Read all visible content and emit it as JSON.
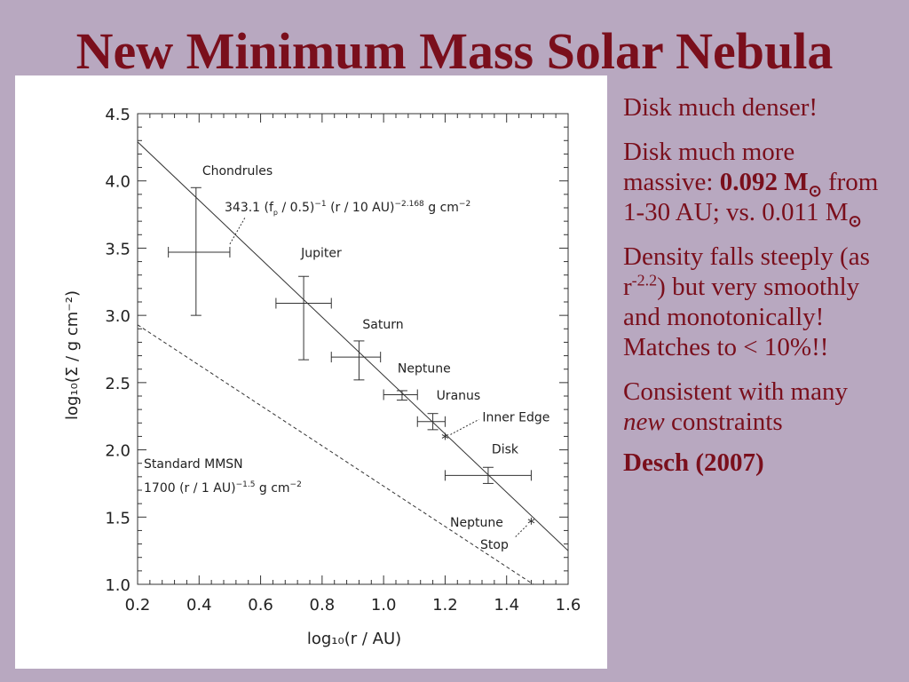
{
  "slide": {
    "title": "New Minimum Mass Solar Nebula",
    "bullets": {
      "p1": "Disk much denser!",
      "p2_a": "Disk much more massive: ",
      "p2_mass": "0.092 M",
      "p2_b": " from 1-30 AU; vs. 0.011 M",
      "p3_a": "Density falls steeply (as r",
      "p3_exp": "-2.2",
      "p3_b": ") but very smoothly and monotonically! Matches to < 10%!!",
      "p4_a": "Consistent with many ",
      "p4_em": "new",
      "p4_b": " constraints",
      "cite": "Desch (2007)"
    },
    "sun_symbol": "⊙"
  },
  "chart_data": {
    "type": "scatter",
    "xlabel": "log₁₀(r / AU)",
    "ylabel": "log₁₀(Σ / g cm⁻²)",
    "xlim": [
      0.2,
      1.6
    ],
    "ylim": [
      1.0,
      4.5
    ],
    "xticks": [
      0.2,
      0.4,
      0.6,
      0.8,
      1.0,
      1.2,
      1.4,
      1.6
    ],
    "xtick_labels": [
      "0.2",
      "0.4",
      "0.6",
      "0.8",
      "1.0",
      "1.2",
      "1.4",
      "1.6"
    ],
    "yticks": [
      1.0,
      1.5,
      2.0,
      2.5,
      3.0,
      3.5,
      4.0,
      4.5
    ],
    "ytick_labels": [
      "1.0",
      "1.5",
      "2.0",
      "2.5",
      "3.0",
      "3.5",
      "4.0",
      "4.5"
    ],
    "grid": false,
    "points": [
      {
        "label": "Chondrules",
        "x": 0.39,
        "y": 3.47,
        "xlow": 0.3,
        "xhigh": 0.5,
        "ylow": 3.0,
        "yhigh": 3.95
      },
      {
        "label": "Jupiter",
        "x": 0.74,
        "y": 3.09,
        "xlow": 0.65,
        "xhigh": 0.83,
        "ylow": 2.67,
        "yhigh": 3.29
      },
      {
        "label": "Saturn",
        "x": 0.92,
        "y": 2.69,
        "xlow": 0.83,
        "xhigh": 0.99,
        "ylow": 2.52,
        "yhigh": 2.81
      },
      {
        "label": "Neptune",
        "x": 1.06,
        "y": 2.41,
        "xlow": 1.0,
        "xhigh": 1.11,
        "ylow": 2.37,
        "yhigh": 2.44
      },
      {
        "label": "Uranus",
        "x": 1.16,
        "y": 2.21,
        "xlow": 1.11,
        "xhigh": 1.2,
        "ylow": 2.15,
        "yhigh": 2.27
      },
      {
        "label": "Disk",
        "x": 1.34,
        "y": 1.81,
        "xlow": 1.2,
        "xhigh": 1.48,
        "ylow": 1.75,
        "yhigh": 1.87
      }
    ],
    "markers": [
      {
        "label": "Inner Edge",
        "x": 1.2,
        "y": 2.1
      },
      {
        "label": "Neptune Stop",
        "x": 1.48,
        "y": 1.47
      }
    ],
    "lines": [
      {
        "label": "343.1 (fₚ / 0.5)⁻¹ (r / 10 AU)⁻²·¹⁶⁸ g cm⁻²",
        "style": "solid",
        "x": [
          0.2,
          1.6
        ],
        "y": [
          4.29,
          1.25
        ]
      },
      {
        "label": "1700 (r / 1 AU)⁻¹·⁵ g cm⁻²",
        "style": "dashed",
        "x": [
          0.2,
          1.6
        ],
        "y": [
          2.93,
          0.83
        ]
      }
    ],
    "annotations": {
      "std_line1": "Standard MMSN",
      "std_line2": "1700 (r / 1 AU)",
      "std_exp": "−1.5",
      "std_units": " g cm",
      "std_units_exp": "−2",
      "fit_a": "343.1 (f",
      "fit_sub": "p",
      "fit_b": " / 0.5)",
      "fit_exp1": "−1",
      "fit_c": " (r / 10 AU)",
      "fit_exp2": "−2.168",
      "fit_units": " g cm",
      "fit_units_exp": "−2",
      "neptune_stop_1": "Neptune",
      "neptune_stop_2": "Stop"
    }
  }
}
